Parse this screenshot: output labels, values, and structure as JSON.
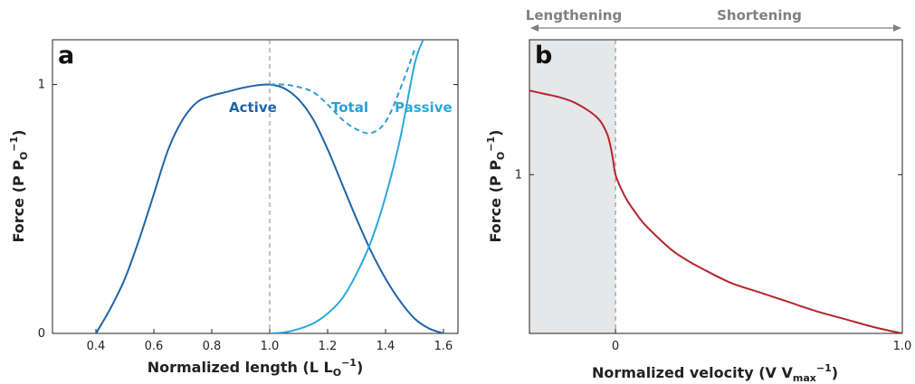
{
  "chart_data": [
    {
      "panel": "a",
      "type": "line",
      "xlabel": "Normalized length (L L",
      "xlabel_sub": "O",
      "xlabel_sup": "−1",
      "xlabel_end": ")",
      "ylabel": "Force (P P",
      "ylabel_sub": "O",
      "ylabel_sup": "−1",
      "ylabel_end": ")",
      "xlim": [
        0.25,
        1.65
      ],
      "ylim": [
        0,
        1.18
      ],
      "xticks": [
        0.4,
        0.6,
        0.8,
        1.0,
        1.2,
        1.4,
        1.6
      ],
      "xtick_labels": [
        "0.4",
        "0.6",
        "0.8",
        "1.0",
        "1.2",
        "1.4",
        "1.6"
      ],
      "yticks": [
        0,
        1
      ],
      "ytick_labels": [
        "0",
        "1"
      ],
      "reference_line_x": 1.0,
      "series": [
        {
          "name": "Active",
          "color": "#1f63a8",
          "style": "solid",
          "x": [
            0.4,
            0.45,
            0.5,
            0.55,
            0.6,
            0.65,
            0.7,
            0.75,
            0.8,
            0.85,
            0.9,
            0.95,
            1.0,
            1.05,
            1.1,
            1.15,
            1.2,
            1.25,
            1.3,
            1.35,
            1.4,
            1.45,
            1.5,
            1.55,
            1.6
          ],
          "y": [
            0.0,
            0.1,
            0.22,
            0.38,
            0.56,
            0.74,
            0.86,
            0.93,
            0.955,
            0.97,
            0.985,
            0.996,
            1.0,
            0.985,
            0.94,
            0.86,
            0.74,
            0.6,
            0.46,
            0.33,
            0.22,
            0.13,
            0.06,
            0.02,
            0.0
          ]
        },
        {
          "name": "Total",
          "color": "#2aa0d6",
          "style": "dashed",
          "x": [
            1.0,
            1.05,
            1.1,
            1.15,
            1.2,
            1.25,
            1.3,
            1.35,
            1.4,
            1.45,
            1.5
          ],
          "y": [
            1.0,
            1.0,
            0.99,
            0.97,
            0.92,
            0.86,
            0.82,
            0.805,
            0.85,
            0.98,
            1.14
          ]
        },
        {
          "name": "Passive",
          "color": "#2aa8dc",
          "style": "solid",
          "x": [
            1.0,
            1.05,
            1.1,
            1.15,
            1.2,
            1.25,
            1.3,
            1.35,
            1.4,
            1.45,
            1.5,
            1.53
          ],
          "y": [
            0.0,
            0.004,
            0.018,
            0.04,
            0.08,
            0.14,
            0.24,
            0.37,
            0.55,
            0.78,
            1.08,
            1.18
          ]
        }
      ]
    },
    {
      "panel": "b",
      "type": "line",
      "xlabel": "Normalized velocity (V V",
      "xlabel_sub": "max",
      "xlabel_sup": "−1",
      "xlabel_end": ")",
      "ylabel": "Force (P P",
      "ylabel_sub": "O",
      "ylabel_sup": "−1",
      "ylabel_end": ")",
      "xlim": [
        -0.3,
        1.0
      ],
      "ylim": [
        0,
        1.85
      ],
      "xticks": [
        0,
        1.0
      ],
      "xtick_labels": [
        "0",
        "1.0"
      ],
      "yticks": [
        1
      ],
      "ytick_labels": [
        "1"
      ],
      "reference_line_x": 0,
      "shaded_region_x": [
        -0.3,
        0
      ],
      "shaded_color": "#e6e7e8",
      "direction_labels": {
        "left": "Lengthening",
        "right": "Shortening",
        "split_x": 0
      },
      "series": [
        {
          "name": "",
          "color": "#b5252e",
          "style": "solid",
          "x": [
            -0.3,
            -0.25,
            -0.2,
            -0.15,
            -0.1,
            -0.07,
            -0.05,
            -0.03,
            -0.02,
            -0.01,
            0.0,
            0.02,
            0.04,
            0.07,
            0.1,
            0.15,
            0.2,
            0.25,
            0.3,
            0.4,
            0.5,
            0.6,
            0.7,
            0.8,
            0.9,
            1.0
          ],
          "y": [
            1.53,
            1.51,
            1.49,
            1.46,
            1.41,
            1.37,
            1.33,
            1.26,
            1.2,
            1.11,
            1.0,
            0.91,
            0.84,
            0.76,
            0.69,
            0.6,
            0.52,
            0.46,
            0.41,
            0.32,
            0.26,
            0.2,
            0.14,
            0.09,
            0.04,
            0.0
          ]
        }
      ]
    }
  ]
}
